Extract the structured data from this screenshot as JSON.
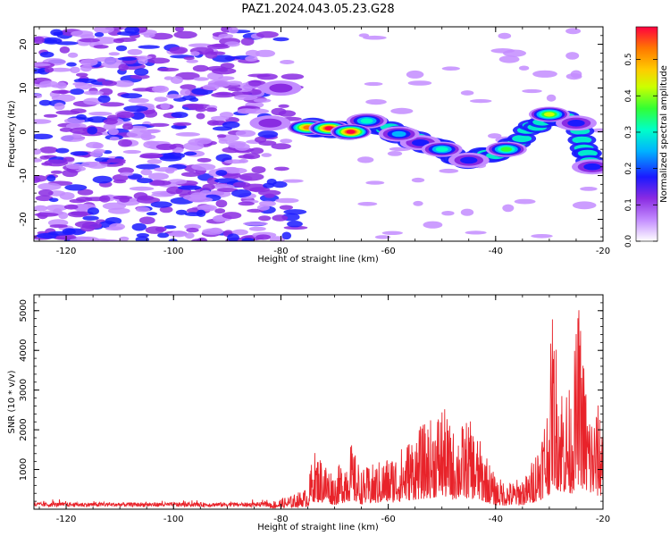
{
  "title": "PAZ1.2024.043.05.23.G28",
  "colors": {
    "snr_line": "#e8232a",
    "colormap": [
      "#ffffff",
      "#c38cff",
      "#8a2be2",
      "#1a1aff",
      "#00b3ff",
      "#00ffc8",
      "#33ff33",
      "#ccff00",
      "#ffcc00",
      "#ff7700",
      "#ff0040"
    ]
  },
  "chart_data": [
    {
      "type": "heatmap",
      "xlabel": "Height of straight line (km)",
      "ylabel": "Frequency (Hz)",
      "xlim": [
        -126,
        -20
      ],
      "ylim": [
        -25,
        24
      ],
      "xticks": [
        -120,
        -100,
        -80,
        -60,
        -40,
        -20
      ],
      "yticks": [
        -20,
        -10,
        0,
        10,
        20
      ],
      "colorbar": {
        "label": "Normalized spectral amplitude",
        "range": [
          0,
          0.59
        ],
        "ticks": [
          0.0,
          0.1,
          0.2,
          0.3,
          0.4,
          0.5
        ]
      },
      "features": [
        {
          "x": -75,
          "y": 1,
          "amp": 0.55
        },
        {
          "x": -71,
          "y": 0.8,
          "amp": 0.58
        },
        {
          "x": -67,
          "y": 0,
          "amp": 0.58
        },
        {
          "x": -64,
          "y": 2.5,
          "amp": 0.3
        },
        {
          "x": -58,
          "y": -0.5,
          "amp": 0.22
        },
        {
          "x": -54,
          "y": -2.5,
          "amp": 0.2
        },
        {
          "x": -50,
          "y": -4,
          "amp": 0.32
        },
        {
          "x": -45,
          "y": -6.5,
          "amp": 0.2
        },
        {
          "x": -38,
          "y": -4,
          "amp": 0.33
        },
        {
          "x": -30,
          "y": 4,
          "amp": 0.4
        },
        {
          "x": -25,
          "y": 2,
          "amp": 0.15
        },
        {
          "x": -22,
          "y": -8,
          "amp": 0.2
        },
        {
          "x": -80,
          "y": 10,
          "amp": 0.12
        },
        {
          "x": -82,
          "y": 2,
          "amp": 0.12
        }
      ]
    },
    {
      "type": "line",
      "xlabel": "Height of straight line (km)",
      "ylabel": "SNR (10 * v/v)",
      "xlim": [
        -126,
        -20
      ],
      "ylim": [
        0,
        5400
      ],
      "xticks": [
        -120,
        -100,
        -80,
        -60,
        -40,
        -20
      ],
      "yticks": [
        1000,
        2000,
        3000,
        4000,
        5000
      ],
      "envelope": [
        {
          "x": -126,
          "y": 150
        },
        {
          "x": -90,
          "y": 150
        },
        {
          "x": -82,
          "y": 200
        },
        {
          "x": -78,
          "y": 350
        },
        {
          "x": -75,
          "y": 550
        },
        {
          "x": -74,
          "y": 1500
        },
        {
          "x": -72,
          "y": 1300
        },
        {
          "x": -70,
          "y": 900
        },
        {
          "x": -67,
          "y": 1700
        },
        {
          "x": -65,
          "y": 1000
        },
        {
          "x": -62,
          "y": 1200
        },
        {
          "x": -58,
          "y": 1500
        },
        {
          "x": -55,
          "y": 2000
        },
        {
          "x": -52,
          "y": 2300
        },
        {
          "x": -50,
          "y": 2700
        },
        {
          "x": -48,
          "y": 2000
        },
        {
          "x": -45,
          "y": 2300
        },
        {
          "x": -42,
          "y": 1500
        },
        {
          "x": -40,
          "y": 800
        },
        {
          "x": -37,
          "y": 700
        },
        {
          "x": -34,
          "y": 900
        },
        {
          "x": -32,
          "y": 1800
        },
        {
          "x": -30,
          "y": 3000
        },
        {
          "x": -29.5,
          "y": 5200
        },
        {
          "x": -28,
          "y": 3500
        },
        {
          "x": -26,
          "y": 3000
        },
        {
          "x": -24.5,
          "y": 5300
        },
        {
          "x": -23,
          "y": 3000
        },
        {
          "x": -22,
          "y": 2500
        },
        {
          "x": -20,
          "y": 2800
        }
      ]
    }
  ]
}
